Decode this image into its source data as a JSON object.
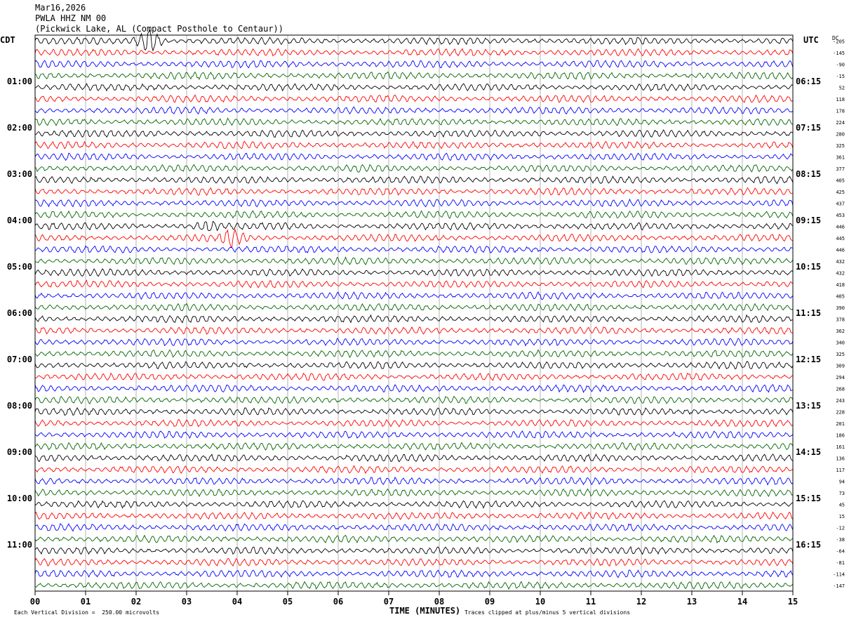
{
  "header": {
    "date": "Mar16,2026",
    "station": "PWLA HHZ NM 00",
    "location": "(Pickwick Lake, AL (Compact Posthole to Centaur))"
  },
  "left_axis_title": "CDT",
  "right_axis_title": "UTC",
  "dc_title": "DC",
  "footer": {
    "left_text": "Each Vertical Division =  250.00 microvolts",
    "center_text": "TIME (MINUTES)",
    "right_text": "Traces clipped at plus/minus 5 vertical divisions"
  },
  "colors": {
    "black": "#000000",
    "red": "#ff0000",
    "blue": "#0000ff",
    "green": "#006400",
    "grid": "#808080"
  },
  "chart_data": {
    "type": "line",
    "subtype": "helicorder",
    "xlabel": "TIME (MINUTES)",
    "xlim": [
      0,
      15
    ],
    "x_ticks": [
      "00",
      "01",
      "02",
      "03",
      "04",
      "05",
      "06",
      "07",
      "08",
      "09",
      "10",
      "11",
      "12",
      "13",
      "14",
      "15"
    ],
    "rows": 48,
    "trace_colors_cycle": [
      "black",
      "red",
      "blue",
      "green"
    ],
    "left_hour_labels": [
      "01:00",
      "02:00",
      "03:00",
      "04:00",
      "05:00",
      "06:00",
      "07:00",
      "08:00",
      "09:00",
      "10:00",
      "11:00"
    ],
    "right_hour_labels": [
      "06:15",
      "07:15",
      "08:15",
      "09:15",
      "10:15",
      "11:15",
      "12:15",
      "13:15",
      "14:15",
      "15:15",
      "16:15"
    ],
    "dc_offsets": [
      -205,
      -145,
      -90,
      -15,
      52,
      118,
      178,
      224,
      280,
      325,
      361,
      377,
      405,
      425,
      437,
      453,
      446,
      445,
      446,
      432,
      432,
      418,
      405,
      390,
      378,
      362,
      340,
      325,
      309,
      294,
      268,
      243,
      228,
      201,
      186,
      161,
      136,
      117,
      94,
      73,
      45,
      15,
      -12,
      -38,
      -64,
      -81,
      -114,
      -147
    ],
    "events": [
      {
        "row": 0,
        "minute": 2.25,
        "amplitude": "clipped"
      },
      {
        "row": 17,
        "minute": 3.9,
        "amplitude": "large"
      },
      {
        "row": 16,
        "minute": 3.4,
        "amplitude": "moderate"
      }
    ]
  }
}
